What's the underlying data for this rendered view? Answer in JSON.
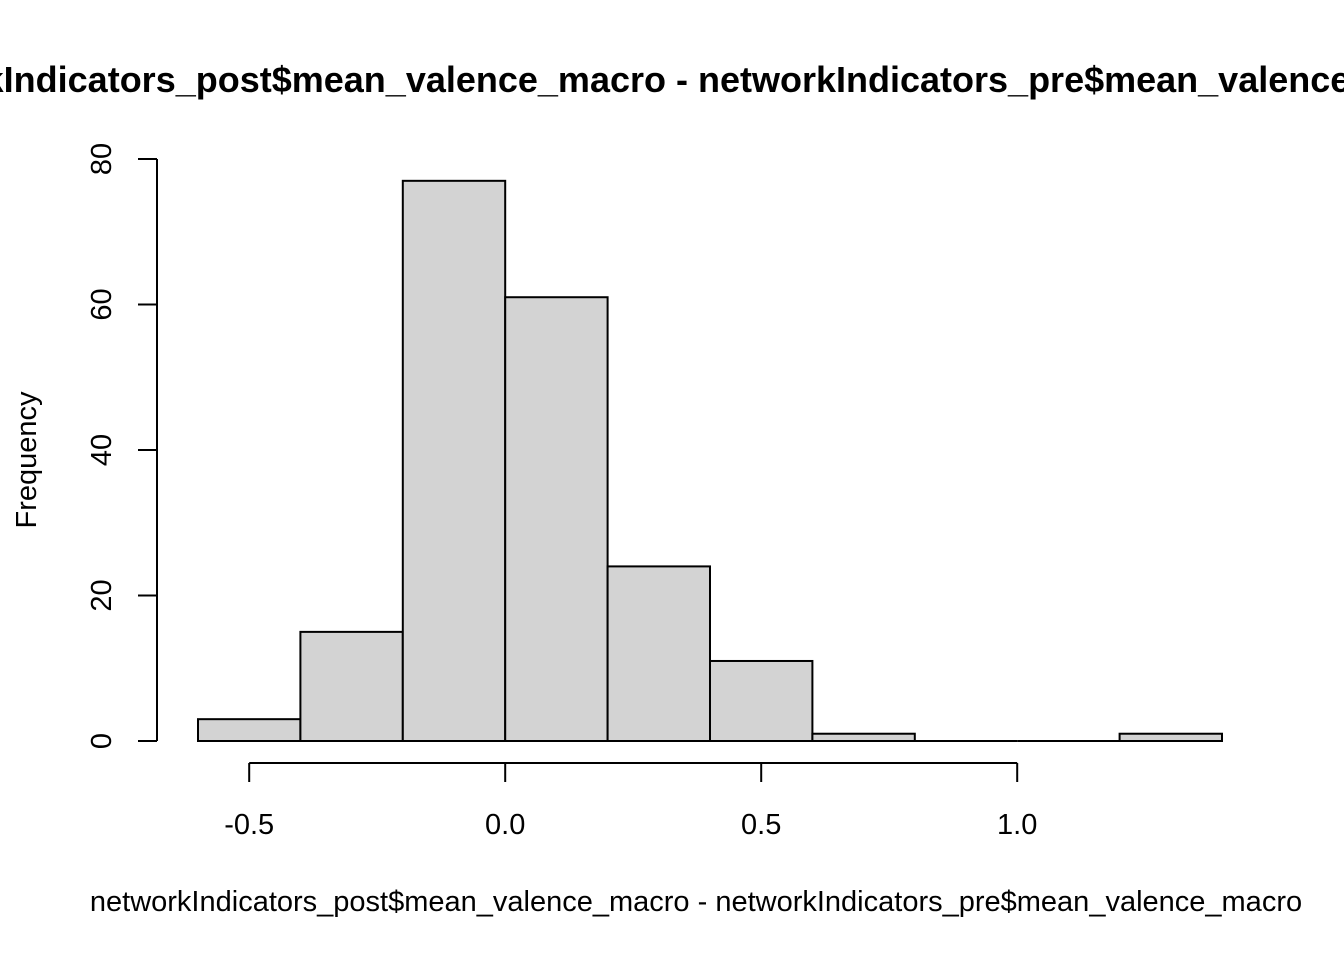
{
  "chart_data": {
    "type": "bar",
    "subtype": "histogram",
    "title": "networkIndicators_post$mean_valence_macro - networkIndicators_pre$mean_valence_macro",
    "xlabel": "networkIndicators_post$mean_valence_macro - networkIndicators_pre$mean_valence_macro",
    "ylabel": "Frequency",
    "bins": [
      {
        "start": -0.6,
        "end": -0.4,
        "count": 3
      },
      {
        "start": -0.4,
        "end": -0.2,
        "count": 15
      },
      {
        "start": -0.2,
        "end": 0.0,
        "count": 77
      },
      {
        "start": 0.0,
        "end": 0.2,
        "count": 61
      },
      {
        "start": 0.2,
        "end": 0.4,
        "count": 24
      },
      {
        "start": 0.4,
        "end": 0.6,
        "count": 11
      },
      {
        "start": 0.6,
        "end": 0.8,
        "count": 1
      },
      {
        "start": 0.8,
        "end": 1.0,
        "count": 0
      },
      {
        "start": 1.0,
        "end": 1.2,
        "count": 0
      },
      {
        "start": 1.2,
        "end": 1.4,
        "count": 1
      }
    ],
    "xticks": [
      -0.5,
      0.0,
      0.5,
      1.0
    ],
    "xtick_labels": [
      "-0.5",
      "0.0",
      "0.5",
      "1.0"
    ],
    "yticks": [
      0,
      20,
      40,
      60,
      80
    ],
    "ytick_labels": [
      "0",
      "20",
      "40",
      "60",
      "80"
    ],
    "xlim": [
      -0.6,
      1.4
    ],
    "ylim": [
      0,
      80
    ],
    "grid": false,
    "bar_color": "#d3d3d3",
    "edge_color": "#000000"
  }
}
